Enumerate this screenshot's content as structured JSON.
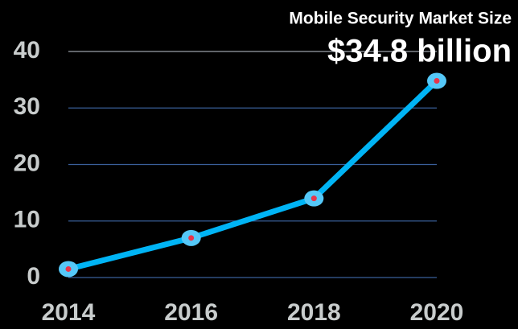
{
  "chart_data": {
    "type": "line",
    "title": "Mobile Security Market Size",
    "annotation": "$34.8 billion",
    "categories": [
      "2014",
      "2016",
      "2018",
      "2020"
    ],
    "series": [
      {
        "name": "Mobile Security Market Size",
        "color": "#00b4f5",
        "values": [
          1.5,
          7,
          14,
          34.8
        ]
      }
    ],
    "ylim": [
      0,
      40
    ],
    "yticks": [
      0,
      10,
      20,
      30,
      40
    ],
    "grid": true
  }
}
